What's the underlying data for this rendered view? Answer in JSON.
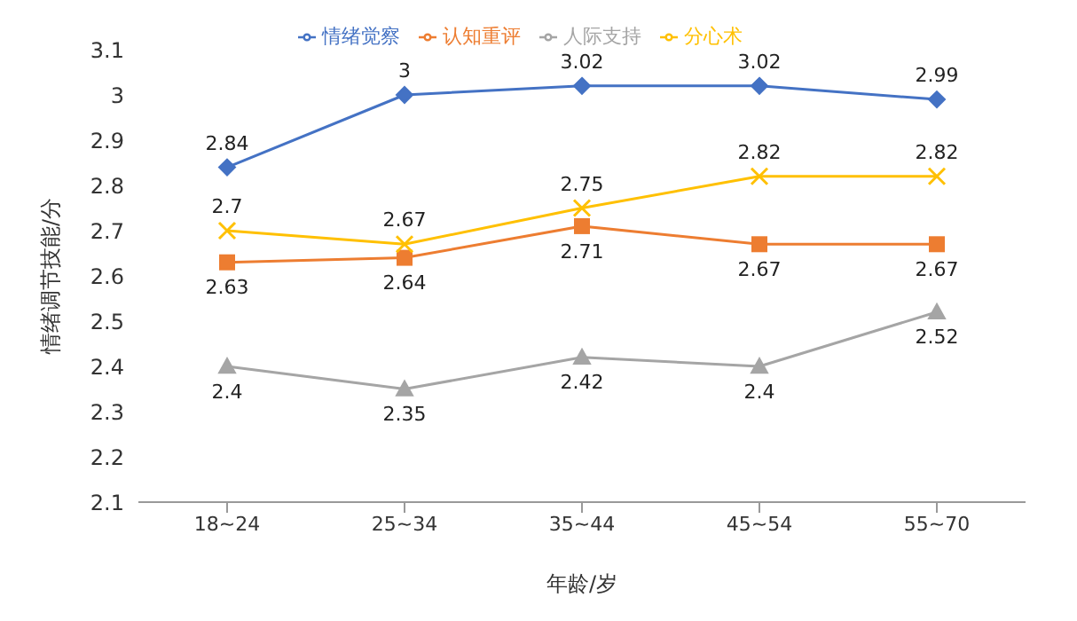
{
  "chart_data": {
    "type": "line",
    "xlabel": "年龄/岁",
    "ylabel": "情绪调节技能/分",
    "categories": [
      "18~24",
      "25~34",
      "35~44",
      "45~54",
      "55~70"
    ],
    "series": [
      {
        "name": "情绪觉察",
        "color": "#4472c4",
        "marker": "diamond",
        "values": [
          2.84,
          3,
          3.02,
          3.02,
          2.99
        ]
      },
      {
        "name": "认知重评",
        "color": "#ed7d31",
        "marker": "square",
        "values": [
          2.63,
          2.64,
          2.71,
          2.67,
          2.67
        ]
      },
      {
        "name": "人际支持",
        "color": "#a5a5a5",
        "marker": "triangle",
        "values": [
          2.4,
          2.35,
          2.42,
          2.4,
          2.52
        ]
      },
      {
        "name": "分心术",
        "color": "#ffc000",
        "marker": "cross",
        "values": [
          2.7,
          2.67,
          2.75,
          2.82,
          2.82
        ]
      }
    ],
    "ylim": [
      2.1,
      3.1
    ],
    "yticks": [
      2.1,
      2.2,
      2.3,
      2.4,
      2.5,
      2.6,
      2.7,
      2.8,
      2.9,
      3,
      3.1
    ],
    "grid": false,
    "legend": "top",
    "data_labels": true,
    "line_style": "solid"
  }
}
